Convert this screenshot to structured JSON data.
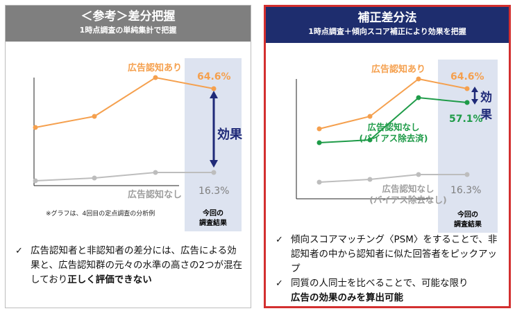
{
  "left": {
    "title": "＜参考＞差分把握",
    "subtitle": "1時点調査の単純集計で把握",
    "aware_label": "広告認知あり",
    "aware_value": "64.6%",
    "unaware_label": "広告認知なし",
    "unaware_value": "16.3%",
    "effect_label": "効果",
    "current_label_1": "今回の",
    "current_label_2": "調査結果",
    "note": "※グラフは、4回目の定点調査の分析例",
    "bullet_text": "広告認知者と非認知者の差分には、広告による効果と、広告認知群の元々の水準の高さの2つが混在しており",
    "bullet_bold": "正しく評価できない"
  },
  "right": {
    "title": "補正差分法",
    "subtitle": "1時点調査＋傾向スコア補正により効果を把握",
    "aware_label": "広告認知あり",
    "aware_value": "64.6%",
    "corrected_label_1": "広告認知なし",
    "corrected_label_2": "(バイアス除去済)",
    "corrected_value": "57.1%",
    "uncorrected_label_1": "広告認知なし",
    "uncorrected_label_2": "(バイアス除去なし)",
    "unaware_value": "16.3%",
    "effect_char_1": "効",
    "effect_char_2": "果",
    "current_label_1": "今回の",
    "current_label_2": "調査結果",
    "bullet1": "傾向スコアマッチング〈PSM〉をすることで、非認知者の中から認知者に似た回答者をピックアップ",
    "bullet2": "同質の人同士を比べることで、可能な限り",
    "bullet2_bold": "広告の効果のみを算出可能"
  },
  "colors": {
    "aware": "#f5a04e",
    "corrected": "#1e9b48",
    "unaware": "#bdbdbd",
    "effect": "#1f2a78",
    "highlight": "#dde3f0"
  },
  "chart_data": [
    {
      "type": "line",
      "x": [
        1,
        2,
        3,
        4
      ],
      "series": [
        {
          "name": "広告認知あり",
          "values": [
            null,
            null,
            null,
            64.6
          ]
        },
        {
          "name": "広告認知なし",
          "values": [
            null,
            null,
            null,
            16.3
          ]
        }
      ]
    },
    {
      "type": "line",
      "x": [
        1,
        2,
        3,
        4
      ],
      "series": [
        {
          "name": "広告認知あり",
          "values": [
            null,
            null,
            null,
            64.6
          ]
        },
        {
          "name": "広告認知なし (バイアス除去済)",
          "values": [
            null,
            null,
            null,
            57.1
          ]
        },
        {
          "name": "広告認知なし (バイアス除去なし)",
          "values": [
            null,
            null,
            null,
            16.3
          ]
        }
      ]
    }
  ]
}
